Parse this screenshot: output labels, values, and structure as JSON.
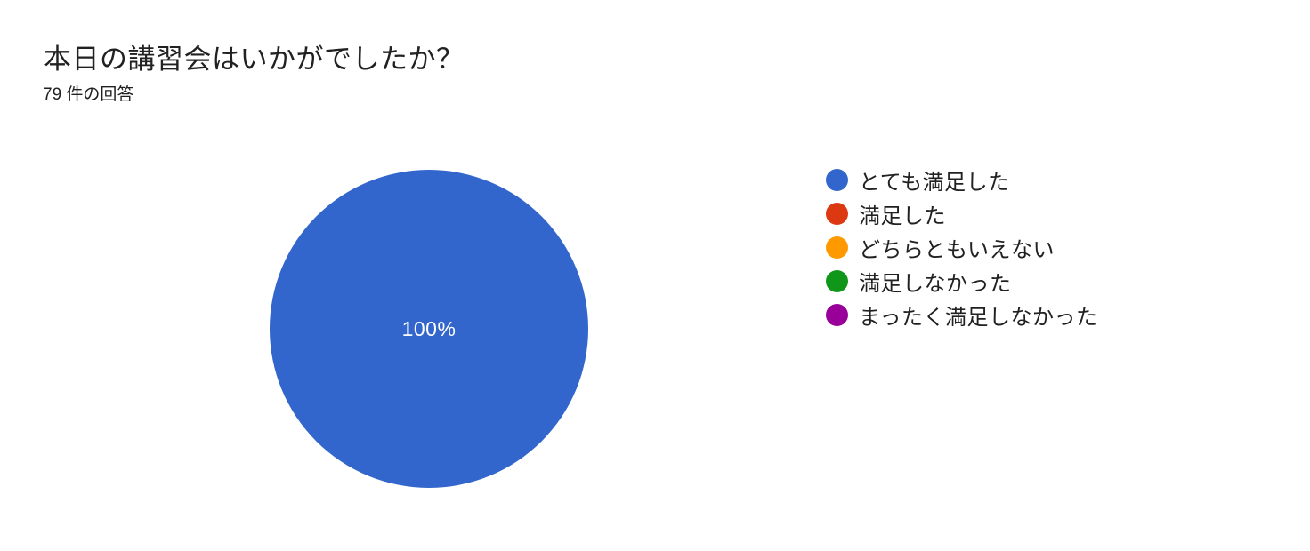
{
  "chart_data": {
    "type": "pie",
    "title": "本日の講習会はいかがでしたか？",
    "subtitle": "79 件の回答",
    "response_count": 79,
    "categories": [
      "とても満足した",
      "満足した",
      "どちらともいえない",
      "満足しなかった",
      "まったく満足しなかった"
    ],
    "values": [
      100,
      0,
      0,
      0,
      0
    ],
    "unit": "percent",
    "colors": [
      "#3366CC",
      "#DC3912",
      "#FF9900",
      "#109618",
      "#990099"
    ],
    "slice_labels": [
      "100%",
      "",
      "",
      "",
      ""
    ],
    "slice_label_color": "#ffffff",
    "text_color": "#212121",
    "background": "#ffffff",
    "legend_position": "right",
    "grid": false
  }
}
